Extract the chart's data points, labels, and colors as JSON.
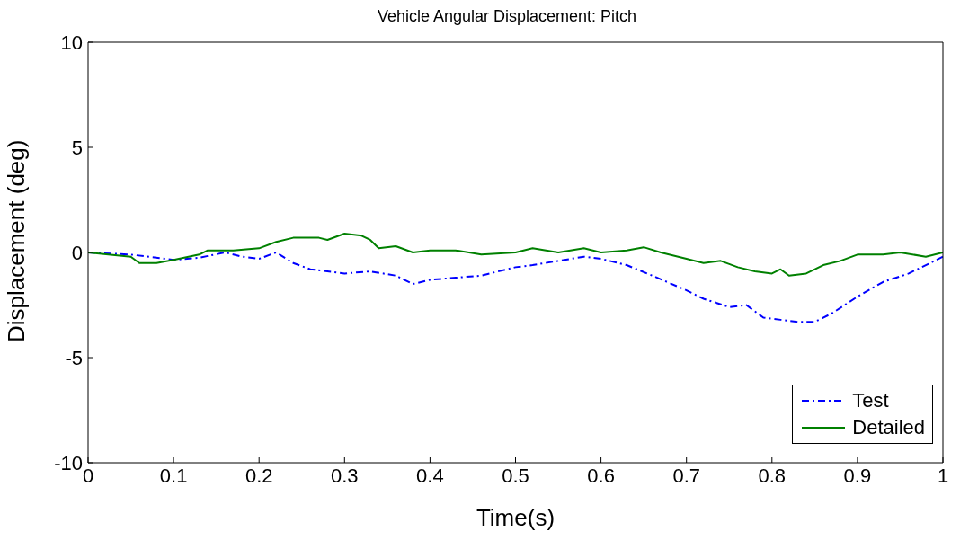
{
  "chart_data": {
    "type": "line",
    "title": "Vehicle Angular Displacement: Pitch",
    "xlabel": "Time(s)",
    "ylabel": "Displacement (deg)",
    "xlim": [
      0,
      1
    ],
    "xticks": [
      0,
      0.1,
      0.2,
      0.3,
      0.4,
      0.5,
      0.6,
      0.7,
      0.8,
      0.9,
      1
    ],
    "ylim": [
      -10,
      10
    ],
    "yticks": [
      -10,
      -5,
      0,
      5,
      10
    ],
    "grid": false,
    "legend": "bottom right",
    "series": [
      {
        "name": "Test",
        "color": "#0000ff",
        "line_style": "dashed",
        "x": [
          0,
          0.05,
          0.1,
          0.13,
          0.16,
          0.18,
          0.2,
          0.22,
          0.24,
          0.26,
          0.3,
          0.33,
          0.36,
          0.38,
          0.4,
          0.43,
          0.46,
          0.5,
          0.52,
          0.55,
          0.58,
          0.6,
          0.63,
          0.66,
          0.7,
          0.72,
          0.75,
          0.77,
          0.79,
          0.81,
          0.83,
          0.85,
          0.87,
          0.9,
          0.93,
          0.96,
          0.98,
          1
        ],
        "values": [
          0,
          -0.1,
          -0.35,
          -0.25,
          0,
          -0.2,
          -0.3,
          0,
          -0.5,
          -0.8,
          -1,
          -0.9,
          -1.1,
          -1.5,
          -1.3,
          -1.2,
          -1.1,
          -0.7,
          -0.6,
          -0.4,
          -0.2,
          -0.3,
          -0.6,
          -1.1,
          -1.8,
          -2.2,
          -2.6,
          -2.5,
          -3.1,
          -3.2,
          -3.3,
          -3.3,
          -2.9,
          -2.1,
          -1.4,
          -1,
          -0.6,
          -0.2
        ]
      },
      {
        "name": "Detailed",
        "color": "#008000",
        "line_style": "solid",
        "x": [
          0,
          0.05,
          0.06,
          0.08,
          0.1,
          0.13,
          0.14,
          0.17,
          0.2,
          0.22,
          0.24,
          0.27,
          0.28,
          0.3,
          0.32,
          0.33,
          0.34,
          0.36,
          0.38,
          0.4,
          0.43,
          0.46,
          0.5,
          0.52,
          0.55,
          0.58,
          0.6,
          0.63,
          0.65,
          0.67,
          0.7,
          0.72,
          0.74,
          0.76,
          0.78,
          0.8,
          0.81,
          0.82,
          0.84,
          0.86,
          0.88,
          0.9,
          0.93,
          0.95,
          0.98,
          1
        ],
        "values": [
          0,
          -0.2,
          -0.5,
          -0.5,
          -0.35,
          -0.1,
          0.1,
          0.1,
          0.2,
          0.5,
          0.7,
          0.7,
          0.6,
          0.9,
          0.8,
          0.6,
          0.2,
          0.3,
          0,
          0.1,
          0.1,
          -0.1,
          0,
          0.2,
          0,
          0.2,
          0,
          0.1,
          0.25,
          0,
          -0.3,
          -0.5,
          -0.4,
          -0.7,
          -0.9,
          -1,
          -0.8,
          -1.1,
          -1,
          -0.6,
          -0.4,
          -0.1,
          -0.1,
          0,
          -0.2,
          0
        ]
      }
    ]
  }
}
